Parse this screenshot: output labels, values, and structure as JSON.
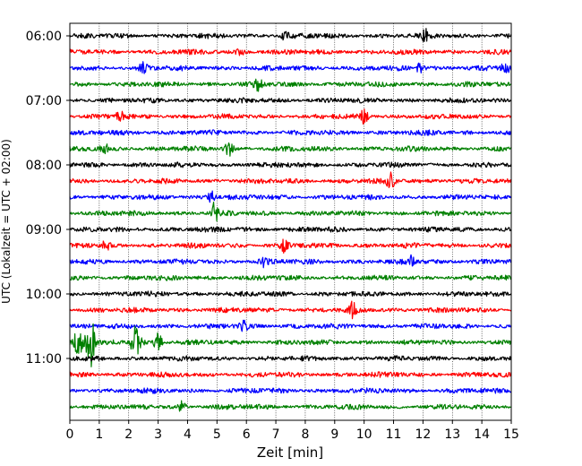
{
  "chart_data": {
    "type": "line",
    "xlabel": "Zeit  [min]",
    "ylabel": "UTC (Lokalzeit = UTC + 02:00)",
    "xlim": [
      0,
      15
    ],
    "x_ticks": [
      "0",
      "1",
      "2",
      "3",
      "4",
      "5",
      "6",
      "7",
      "8",
      "9",
      "10",
      "11",
      "12",
      "13",
      "14",
      "15"
    ],
    "y_ticks": [
      {
        "label": "06:00",
        "row": 0
      },
      {
        "label": "07:00",
        "row": 4
      },
      {
        "label": "08:00",
        "row": 8
      },
      {
        "label": "09:00",
        "row": 12
      },
      {
        "label": "10:00",
        "row": 16
      },
      {
        "label": "11:00",
        "row": 20
      }
    ],
    "grid": "vertical",
    "trace_colors": [
      "#000000",
      "#ff0000",
      "#0000ff",
      "#008000"
    ],
    "traces": [
      {
        "start": "06:00",
        "color": "#000000"
      },
      {
        "start": "06:15",
        "color": "#ff0000"
      },
      {
        "start": "06:30",
        "color": "#0000ff"
      },
      {
        "start": "06:45",
        "color": "#008000"
      },
      {
        "start": "07:00",
        "color": "#000000"
      },
      {
        "start": "07:15",
        "color": "#ff0000"
      },
      {
        "start": "07:30",
        "color": "#0000ff"
      },
      {
        "start": "07:45",
        "color": "#008000"
      },
      {
        "start": "08:00",
        "color": "#000000"
      },
      {
        "start": "08:15",
        "color": "#ff0000"
      },
      {
        "start": "08:30",
        "color": "#0000ff"
      },
      {
        "start": "08:45",
        "color": "#008000"
      },
      {
        "start": "09:00",
        "color": "#000000"
      },
      {
        "start": "09:15",
        "color": "#ff0000"
      },
      {
        "start": "09:30",
        "color": "#0000ff"
      },
      {
        "start": "09:45",
        "color": "#008000"
      },
      {
        "start": "10:00",
        "color": "#000000"
      },
      {
        "start": "10:15",
        "color": "#ff0000"
      },
      {
        "start": "10:30",
        "color": "#0000ff"
      },
      {
        "start": "10:45",
        "color": "#008000"
      },
      {
        "start": "11:00",
        "color": "#000000"
      },
      {
        "start": "11:15",
        "color": "#ff0000"
      },
      {
        "start": "11:30",
        "color": "#0000ff"
      },
      {
        "start": "11:45",
        "color": "#008000"
      }
    ],
    "events": [
      {
        "row": 0,
        "t": 12.1,
        "amp": 0.35
      },
      {
        "row": 0,
        "t": 7.3,
        "amp": 0.3
      },
      {
        "row": 1,
        "t": 5.8,
        "amp": 0.25
      },
      {
        "row": 2,
        "t": 2.5,
        "amp": 0.3
      },
      {
        "row": 2,
        "t": 11.9,
        "amp": 0.3
      },
      {
        "row": 2,
        "t": 14.8,
        "amp": 0.35
      },
      {
        "row": 3,
        "t": 6.4,
        "amp": 0.3
      },
      {
        "row": 5,
        "t": 10.0,
        "amp": 0.4
      },
      {
        "row": 5,
        "t": 1.7,
        "amp": 0.3
      },
      {
        "row": 7,
        "t": 5.4,
        "amp": 0.55
      },
      {
        "row": 7,
        "t": 1.2,
        "amp": 0.3
      },
      {
        "row": 9,
        "t": 10.9,
        "amp": 0.45
      },
      {
        "row": 10,
        "t": 4.8,
        "amp": 0.35
      },
      {
        "row": 11,
        "t": 4.9,
        "amp": 0.6
      },
      {
        "row": 13,
        "t": 7.3,
        "amp": 0.35
      },
      {
        "row": 13,
        "t": 1.2,
        "amp": 0.3
      },
      {
        "row": 14,
        "t": 6.6,
        "amp": 0.4
      },
      {
        "row": 14,
        "t": 11.6,
        "amp": 0.35
      },
      {
        "row": 17,
        "t": 9.6,
        "amp": 0.4
      },
      {
        "row": 18,
        "t": 5.9,
        "amp": 0.35
      },
      {
        "row": 19,
        "t": 0.25,
        "amp": 0.7
      },
      {
        "row": 19,
        "t": 0.5,
        "amp": 0.8
      },
      {
        "row": 19,
        "t": 0.7,
        "amp": 2.4
      },
      {
        "row": 19,
        "t": 2.2,
        "amp": 1.0
      },
      {
        "row": 19,
        "t": 2.35,
        "amp": 0.6
      },
      {
        "row": 19,
        "t": 3.0,
        "amp": 0.6
      },
      {
        "row": 23,
        "t": 3.8,
        "amp": 0.3
      }
    ]
  }
}
